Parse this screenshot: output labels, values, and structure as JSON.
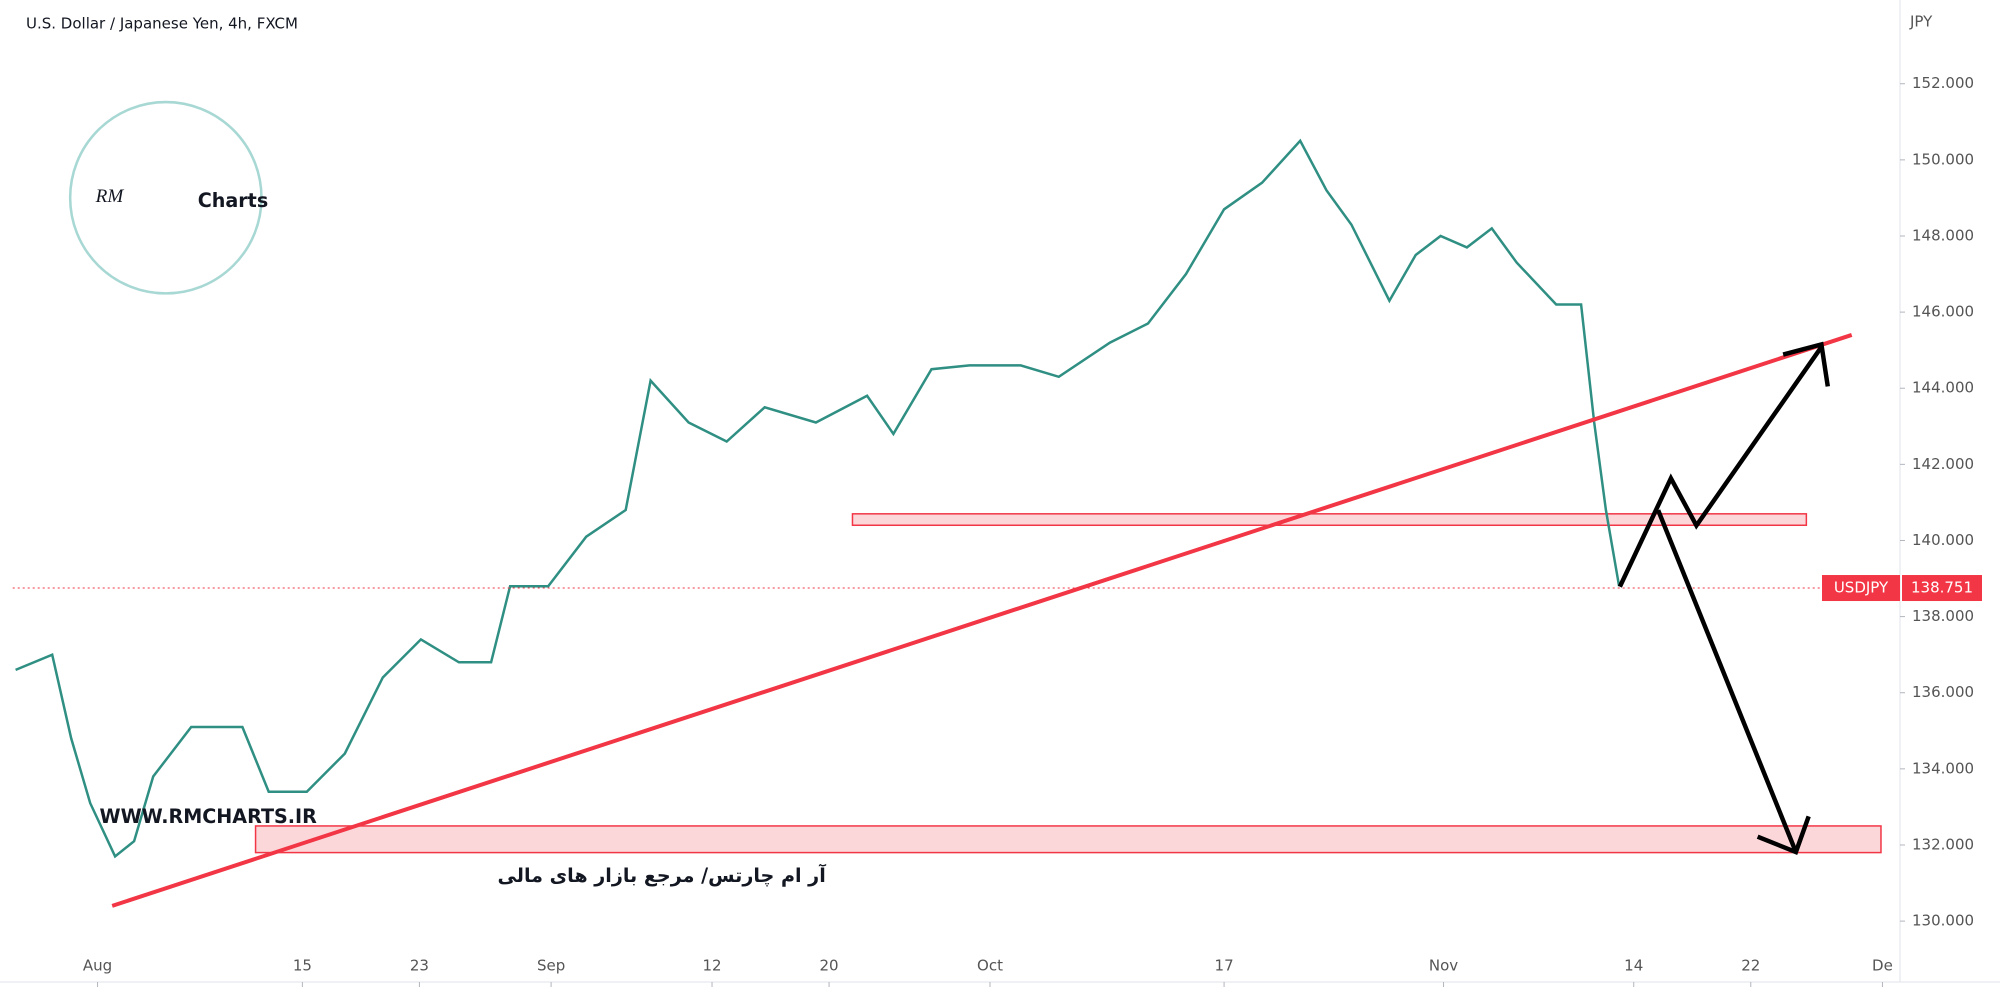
{
  "chart_data": {
    "type": "line",
    "title": "U.S. Dollar / Japanese Yen, 4h, FXCM",
    "y_axis_label": "JPY",
    "series": [
      {
        "name": "USDJPY",
        "color": "#2f8f83",
        "x": [
          -5.6,
          -3.1,
          -1.8,
          -0.5,
          1.2,
          2.5,
          3.8,
          6.4,
          9.9,
          11.7,
          14.3,
          16.9,
          19.5,
          22.1,
          24.7,
          26.9,
          28.2,
          30.8,
          33.4,
          36.1,
          37.8,
          40.4,
          43.0,
          45.6,
          49.1,
          52.6,
          54.4,
          57.0,
          59.6,
          63.1,
          65.7,
          69.2,
          71.8,
          74.4,
          77.0,
          79.6,
          82.2,
          84.0,
          85.7,
          88.3,
          90.1,
          91.8,
          93.6,
          95.3,
          97.0,
          99.7,
          101.4,
          102.3,
          103.1,
          104.0
        ],
        "values": [
          136.6,
          137.0,
          134.8,
          133.1,
          131.7,
          132.1,
          133.8,
          135.1,
          135.1,
          133.4,
          133.4,
          134.4,
          136.4,
          137.4,
          136.8,
          136.8,
          138.8,
          138.8,
          140.1,
          140.8,
          144.2,
          143.1,
          142.6,
          143.5,
          143.1,
          143.8,
          142.8,
          144.5,
          144.6,
          144.6,
          144.3,
          145.2,
          145.7,
          147.0,
          148.7,
          149.4,
          150.5,
          149.2,
          148.3,
          146.3,
          147.5,
          148.0,
          147.7,
          148.2,
          147.3,
          146.2,
          146.2,
          143.1,
          140.8,
          138.8
        ]
      }
    ],
    "last_price": 138.751,
    "price_line_color": "#f23645",
    "trendline": {
      "x": [
        1.0,
        119.9
      ],
      "y": [
        130.4,
        145.4
      ],
      "color": "#f23645"
    },
    "zones": [
      {
        "x": [
          51.6,
          116.8
        ],
        "y": [
          140.4,
          140.7
        ],
        "color": "#f23645"
      },
      {
        "x": [
          10.8,
          121.9
        ],
        "y": [
          131.8,
          132.5
        ],
        "color": "#f23645"
      }
    ],
    "xlim": [
      -5.8,
      123.2
    ],
    "ylim": [
      128.4,
      154.2
    ],
    "xticks": [
      {
        "value": 0,
        "label": "Aug"
      },
      {
        "value": 14,
        "label": "15"
      },
      {
        "value": 22,
        "label": "23"
      },
      {
        "value": 31,
        "label": "Sep"
      },
      {
        "value": 42,
        "label": "12"
      },
      {
        "value": 50,
        "label": "20"
      },
      {
        "value": 61,
        "label": "Oct"
      },
      {
        "value": 77,
        "label": "17"
      },
      {
        "value": 92,
        "label": "Nov"
      },
      {
        "value": 105,
        "label": "14"
      },
      {
        "value": 113,
        "label": "22"
      },
      {
        "value": 122,
        "label": "De"
      }
    ],
    "yticks": [
      {
        "value": 130,
        "label": "130.000"
      },
      {
        "value": 132,
        "label": "132.000"
      },
      {
        "value": 134,
        "label": "134.000"
      },
      {
        "value": 136,
        "label": "136.000"
      },
      {
        "value": 138,
        "label": "138.000"
      },
      {
        "value": 140,
        "label": "140.000"
      },
      {
        "value": 142,
        "label": "142.000"
      },
      {
        "value": 144,
        "label": "144.000"
      },
      {
        "value": 146,
        "label": "146.000"
      },
      {
        "value": 148,
        "label": "148.000"
      },
      {
        "value": 150,
        "label": "150.000"
      },
      {
        "value": 152,
        "label": "152.000"
      }
    ],
    "watermark": {
      "logo_script": "RM",
      "logo_text": "Charts",
      "site": "WWW.RMCHARTS.IR",
      "tagline": "آر ام چارتس/ مرجع بازار های مالی"
    }
  }
}
